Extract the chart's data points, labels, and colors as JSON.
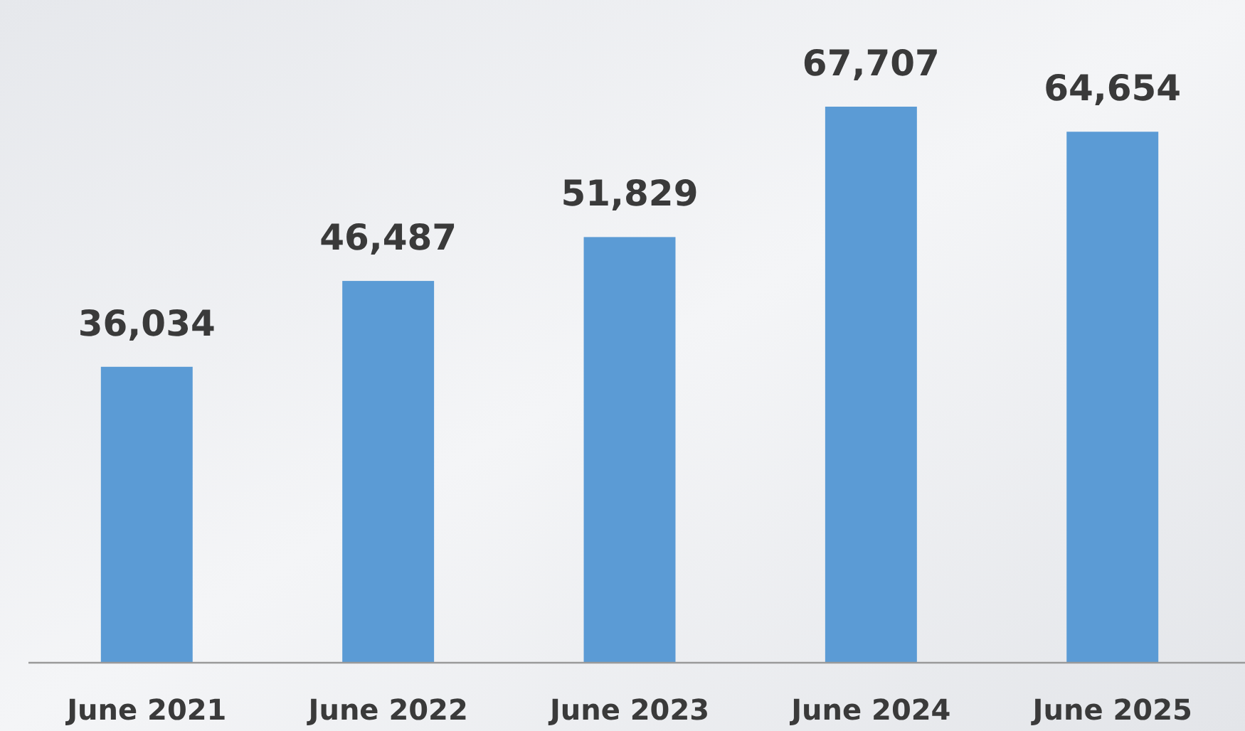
{
  "chart_data": {
    "type": "bar",
    "categories": [
      "June 2021",
      "June 2022",
      "June 2023",
      "June 2024",
      "June 2025"
    ],
    "values": [
      36034,
      46487,
      51829,
      67707,
      64654
    ],
    "color": "#5b9bd5",
    "value_labels": [
      "36,034",
      "46,487",
      "51,829",
      "67,707",
      "64,654"
    ],
    "tick_labels": "x"
  }
}
